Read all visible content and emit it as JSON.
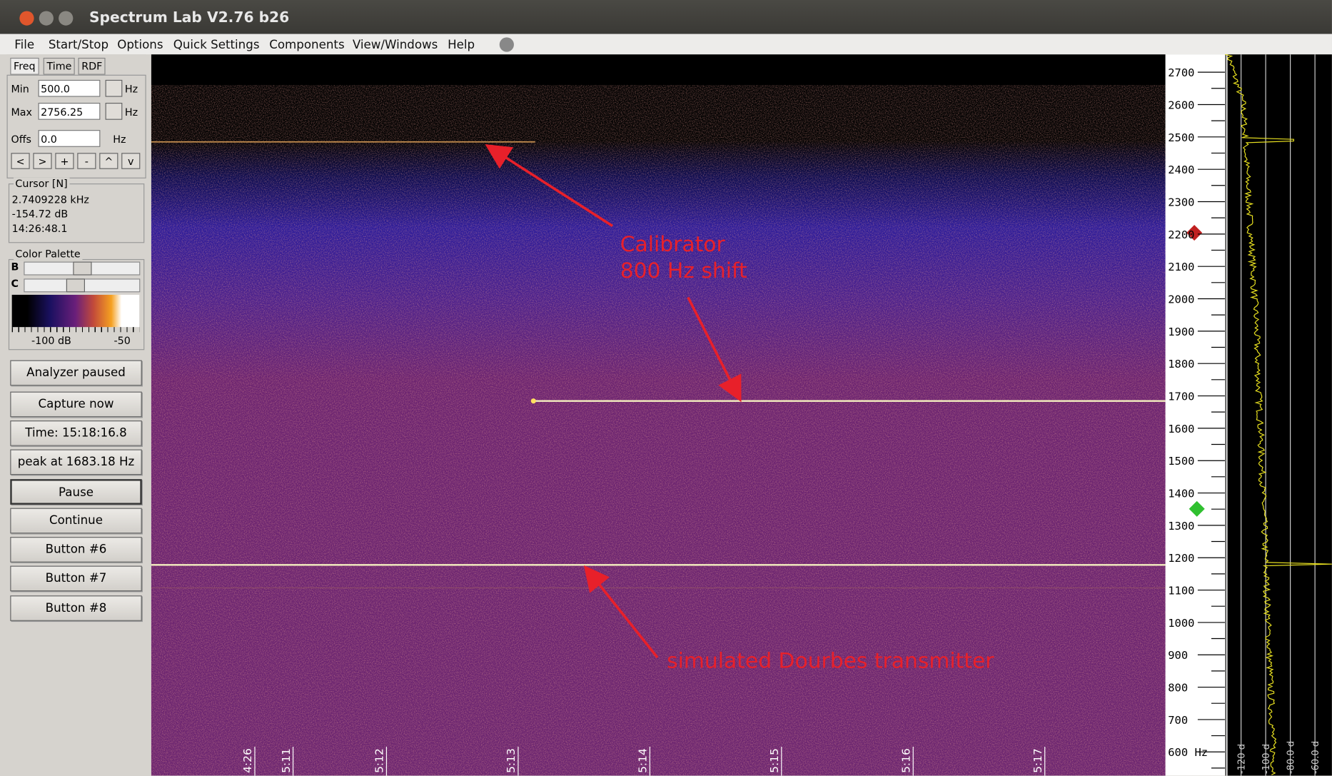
{
  "window": {
    "title": "Spectrum Lab V2.76 b26"
  },
  "menu": [
    "File",
    "Start/Stop",
    "Options",
    "Quick Settings",
    "Components",
    "View/Windows",
    "Help"
  ],
  "tabs": [
    "Freq",
    "Time",
    "RDF"
  ],
  "freq_panel": {
    "fields": [
      {
        "label": "Min",
        "value": "500.0",
        "unit": "Hz"
      },
      {
        "label": "Max",
        "value": "2756.25",
        "unit": "Hz"
      },
      {
        "label": "Offs",
        "value": "0.0",
        "unit": "Hz"
      }
    ],
    "nav_buttons": [
      "<",
      ">",
      "+",
      "-",
      "^",
      "v"
    ]
  },
  "cursor": {
    "title": "Cursor [N]",
    "lines": [
      "2.7409228 kHz",
      "-154.72 dB",
      "14:26:48.1"
    ]
  },
  "color_palette": {
    "title": "Color Palette",
    "sliders": [
      "B",
      "C"
    ],
    "scale_labels": [
      "-100 dB",
      "-50"
    ]
  },
  "buttons": [
    "Analyzer paused",
    "Capture now",
    "Time:  15:18:16.8",
    "peak at 1683.18 Hz",
    "Pause",
    "Continue",
    "Button #6",
    "Button #7",
    "Button #8"
  ],
  "annotations": [
    {
      "lines": [
        "Calibrator",
        "800 Hz shift"
      ]
    },
    {
      "lines": [
        "simulated Dourbes transmitter"
      ]
    }
  ],
  "time_labels": [
    "4:26",
    "5:11",
    "5:12",
    "5:13",
    "5:14",
    "5:15",
    "5:16",
    "5:17"
  ],
  "freq_labels": [
    "2700",
    "2600",
    "2500",
    "2400",
    "2300",
    "2200",
    "2100",
    "2000",
    "1900",
    "1800",
    "1700",
    "1600",
    "1500",
    "1400",
    "1300",
    "1200",
    "1100",
    "1000",
    "900",
    "800",
    "700",
    "600 Hz"
  ],
  "spectrum_labels": [
    "-120 d",
    "-100 d",
    "-80.0 d",
    "-60.0 d"
  ]
}
